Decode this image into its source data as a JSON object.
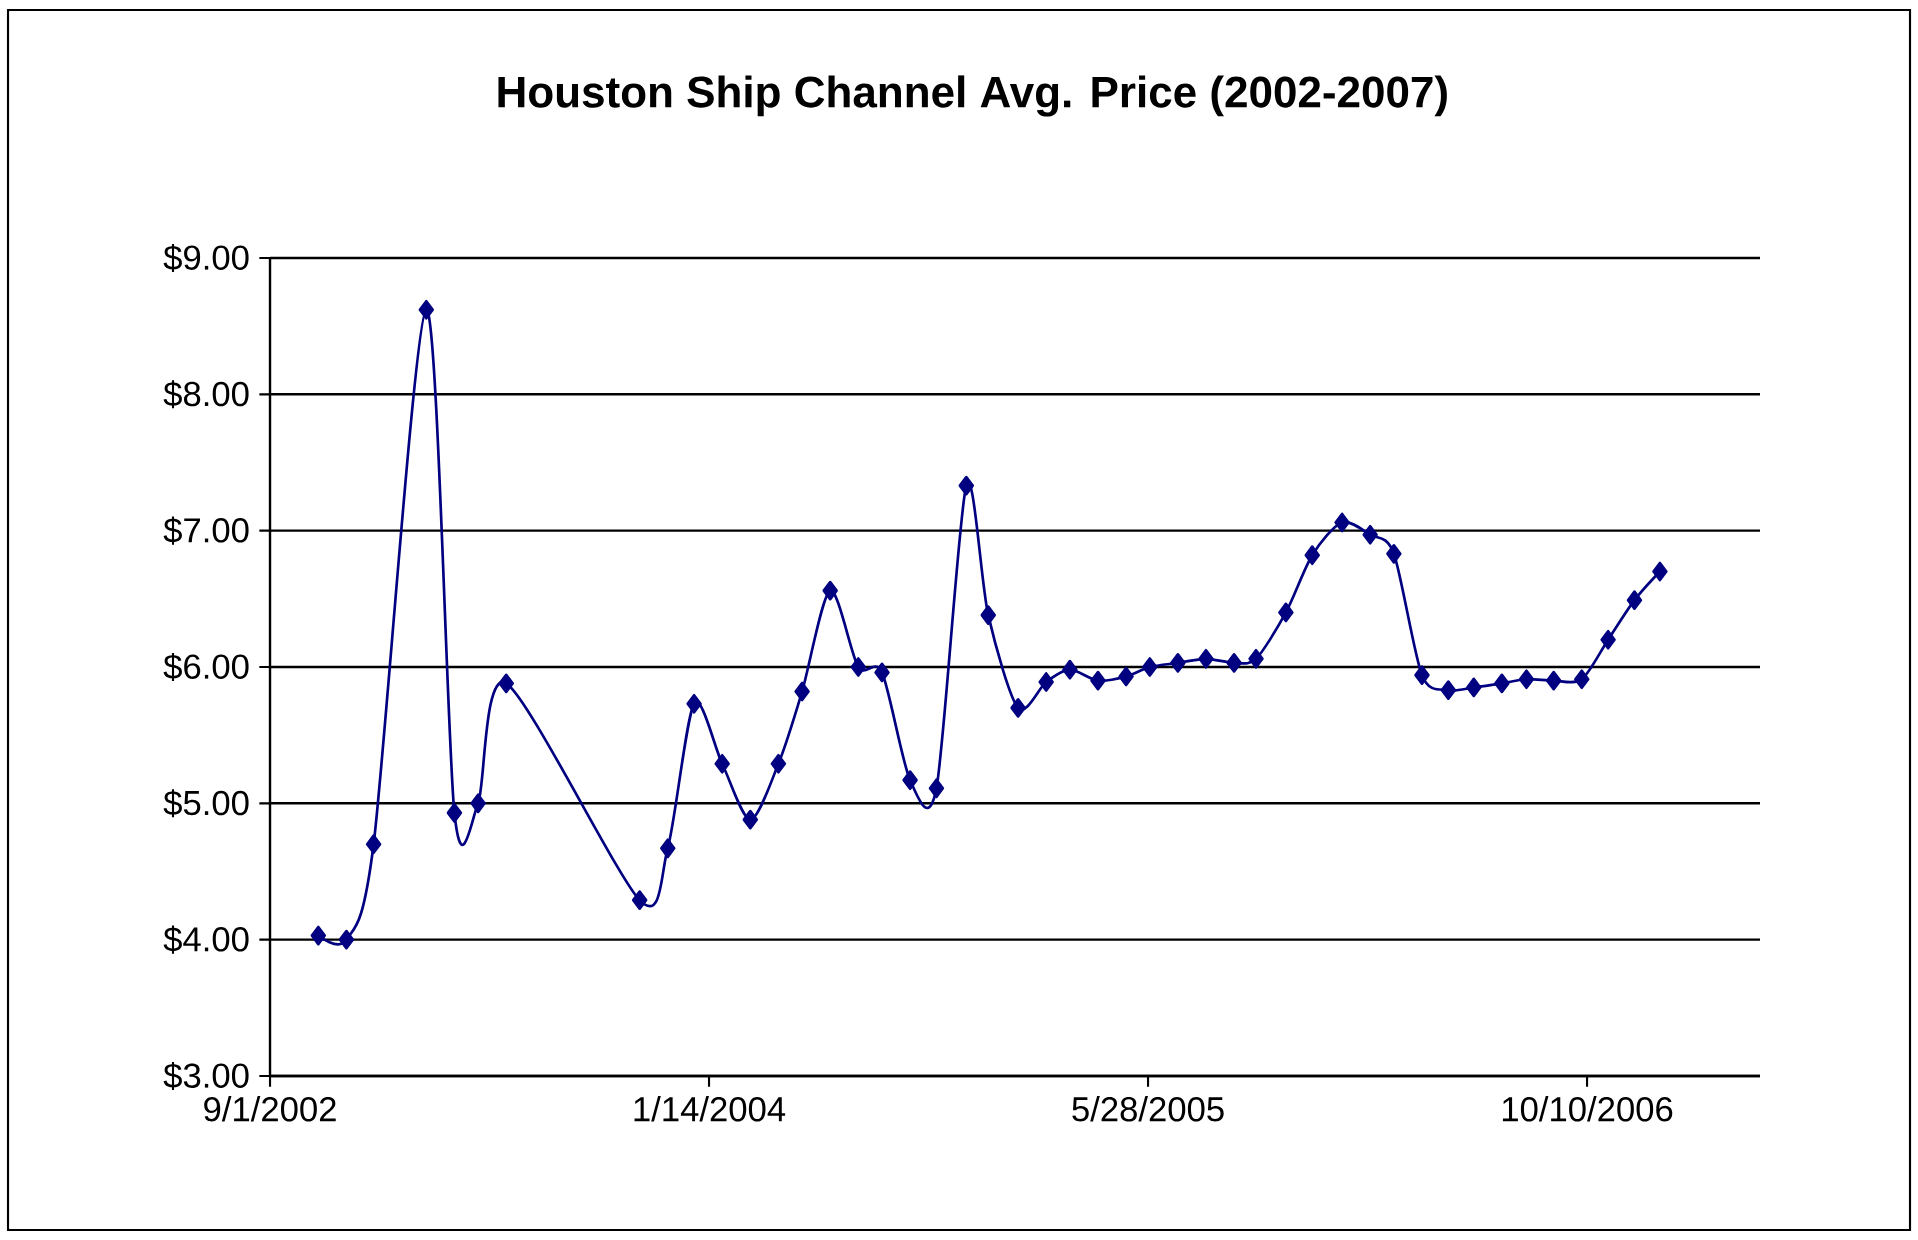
{
  "chart_data": {
    "type": "line",
    "title": "Houston Ship Channel Avg. Price (2002-2007)",
    "x": [
      "2002-10-26",
      "2002-11-27",
      "2002-12-28",
      "2003-02-26",
      "2003-03-30",
      "2003-04-26",
      "2003-05-28",
      "2003-10-27",
      "2003-11-28",
      "2003-12-28",
      "2004-01-29",
      "2004-03-01",
      "2004-04-02",
      "2004-04-29",
      "2004-05-31",
      "2004-07-02",
      "2004-07-29",
      "2004-08-30",
      "2004-09-29",
      "2004-11-02",
      "2004-11-27",
      "2004-12-31",
      "2005-02-01",
      "2005-02-28",
      "2005-04-01",
      "2005-05-03",
      "2005-05-30",
      "2005-07-01",
      "2005-08-02",
      "2005-09-03",
      "2005-09-28",
      "2005-11-01",
      "2005-12-01",
      "2006-01-04",
      "2006-02-05",
      "2006-03-04",
      "2006-04-05",
      "2006-05-05",
      "2006-06-03",
      "2006-07-05",
      "2006-08-02",
      "2006-09-02",
      "2006-10-04",
      "2006-11-03",
      "2006-12-03",
      "2007-01-01"
    ],
    "series": [
      {
        "color": "#000080",
        "values": [
          4.03,
          4.0,
          4.7,
          8.62,
          4.93,
          5.0,
          5.88,
          4.29,
          4.67,
          5.73,
          5.29,
          4.88,
          5.29,
          5.82,
          6.56,
          6.0,
          5.96,
          5.17,
          5.11,
          7.33,
          6.38,
          5.7,
          5.89,
          5.98,
          5.9,
          5.93,
          6.0,
          6.03,
          6.06,
          6.03,
          6.06,
          6.4,
          6.82,
          7.06,
          6.97,
          6.83,
          5.94,
          5.83,
          5.85,
          5.88,
          5.91,
          5.9,
          5.91,
          6.2,
          6.49,
          6.7
        ]
      }
    ],
    "xlim": [
      "2002-09-01",
      "2007-04-25"
    ],
    "xticks": [
      {
        "value": "2002-09-01",
        "label": "9/1/2002"
      },
      {
        "value": "2004-01-14",
        "label": "1/14/2004"
      },
      {
        "value": "2005-05-28",
        "label": "5/28/2005"
      },
      {
        "value": "2006-10-10",
        "label": "10/10/2006"
      }
    ],
    "ylim": [
      3,
      9
    ],
    "yticks": [
      {
        "value": 3,
        "label": "$3.00"
      },
      {
        "value": 4,
        "label": "$4.00"
      },
      {
        "value": 5,
        "label": "$5.00"
      },
      {
        "value": 6,
        "label": "$6.00"
      },
      {
        "value": 7,
        "label": "$7.00"
      },
      {
        "value": 8,
        "label": "$8.00"
      },
      {
        "value": 9,
        "label": "$9.00"
      }
    ],
    "grid": "y",
    "marker": "diamond",
    "line_style": "solid"
  }
}
